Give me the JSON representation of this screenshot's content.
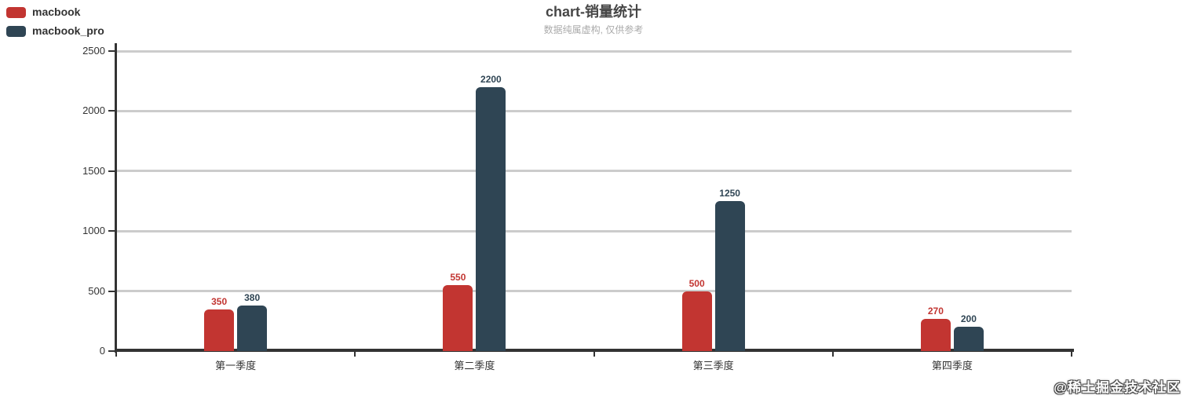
{
  "watermark": "@稀土掘金技术社区",
  "chart_data": {
    "type": "bar",
    "title": "chart-销量统计",
    "subtitle": "数据纯属虚构, 仅供参考",
    "categories": [
      "第一季度",
      "第二季度",
      "第三季度",
      "第四季度"
    ],
    "series": [
      {
        "name": "macbook",
        "color": "#c23531",
        "values": [
          350,
          550,
          500,
          270
        ]
      },
      {
        "name": "macbook_pro",
        "color": "#2f4554",
        "values": [
          380,
          2200,
          1250,
          200
        ]
      }
    ],
    "ylim": [
      0,
      2500
    ],
    "yticks": [
      0,
      500,
      1000,
      1500,
      2000,
      2500
    ],
    "grid": true,
    "legend_position": "top-left",
    "value_labels": true,
    "axis_color": "#333333",
    "grid_color": "#cccccc",
    "label_colors": [
      "#c23531",
      "#2f4554"
    ]
  }
}
